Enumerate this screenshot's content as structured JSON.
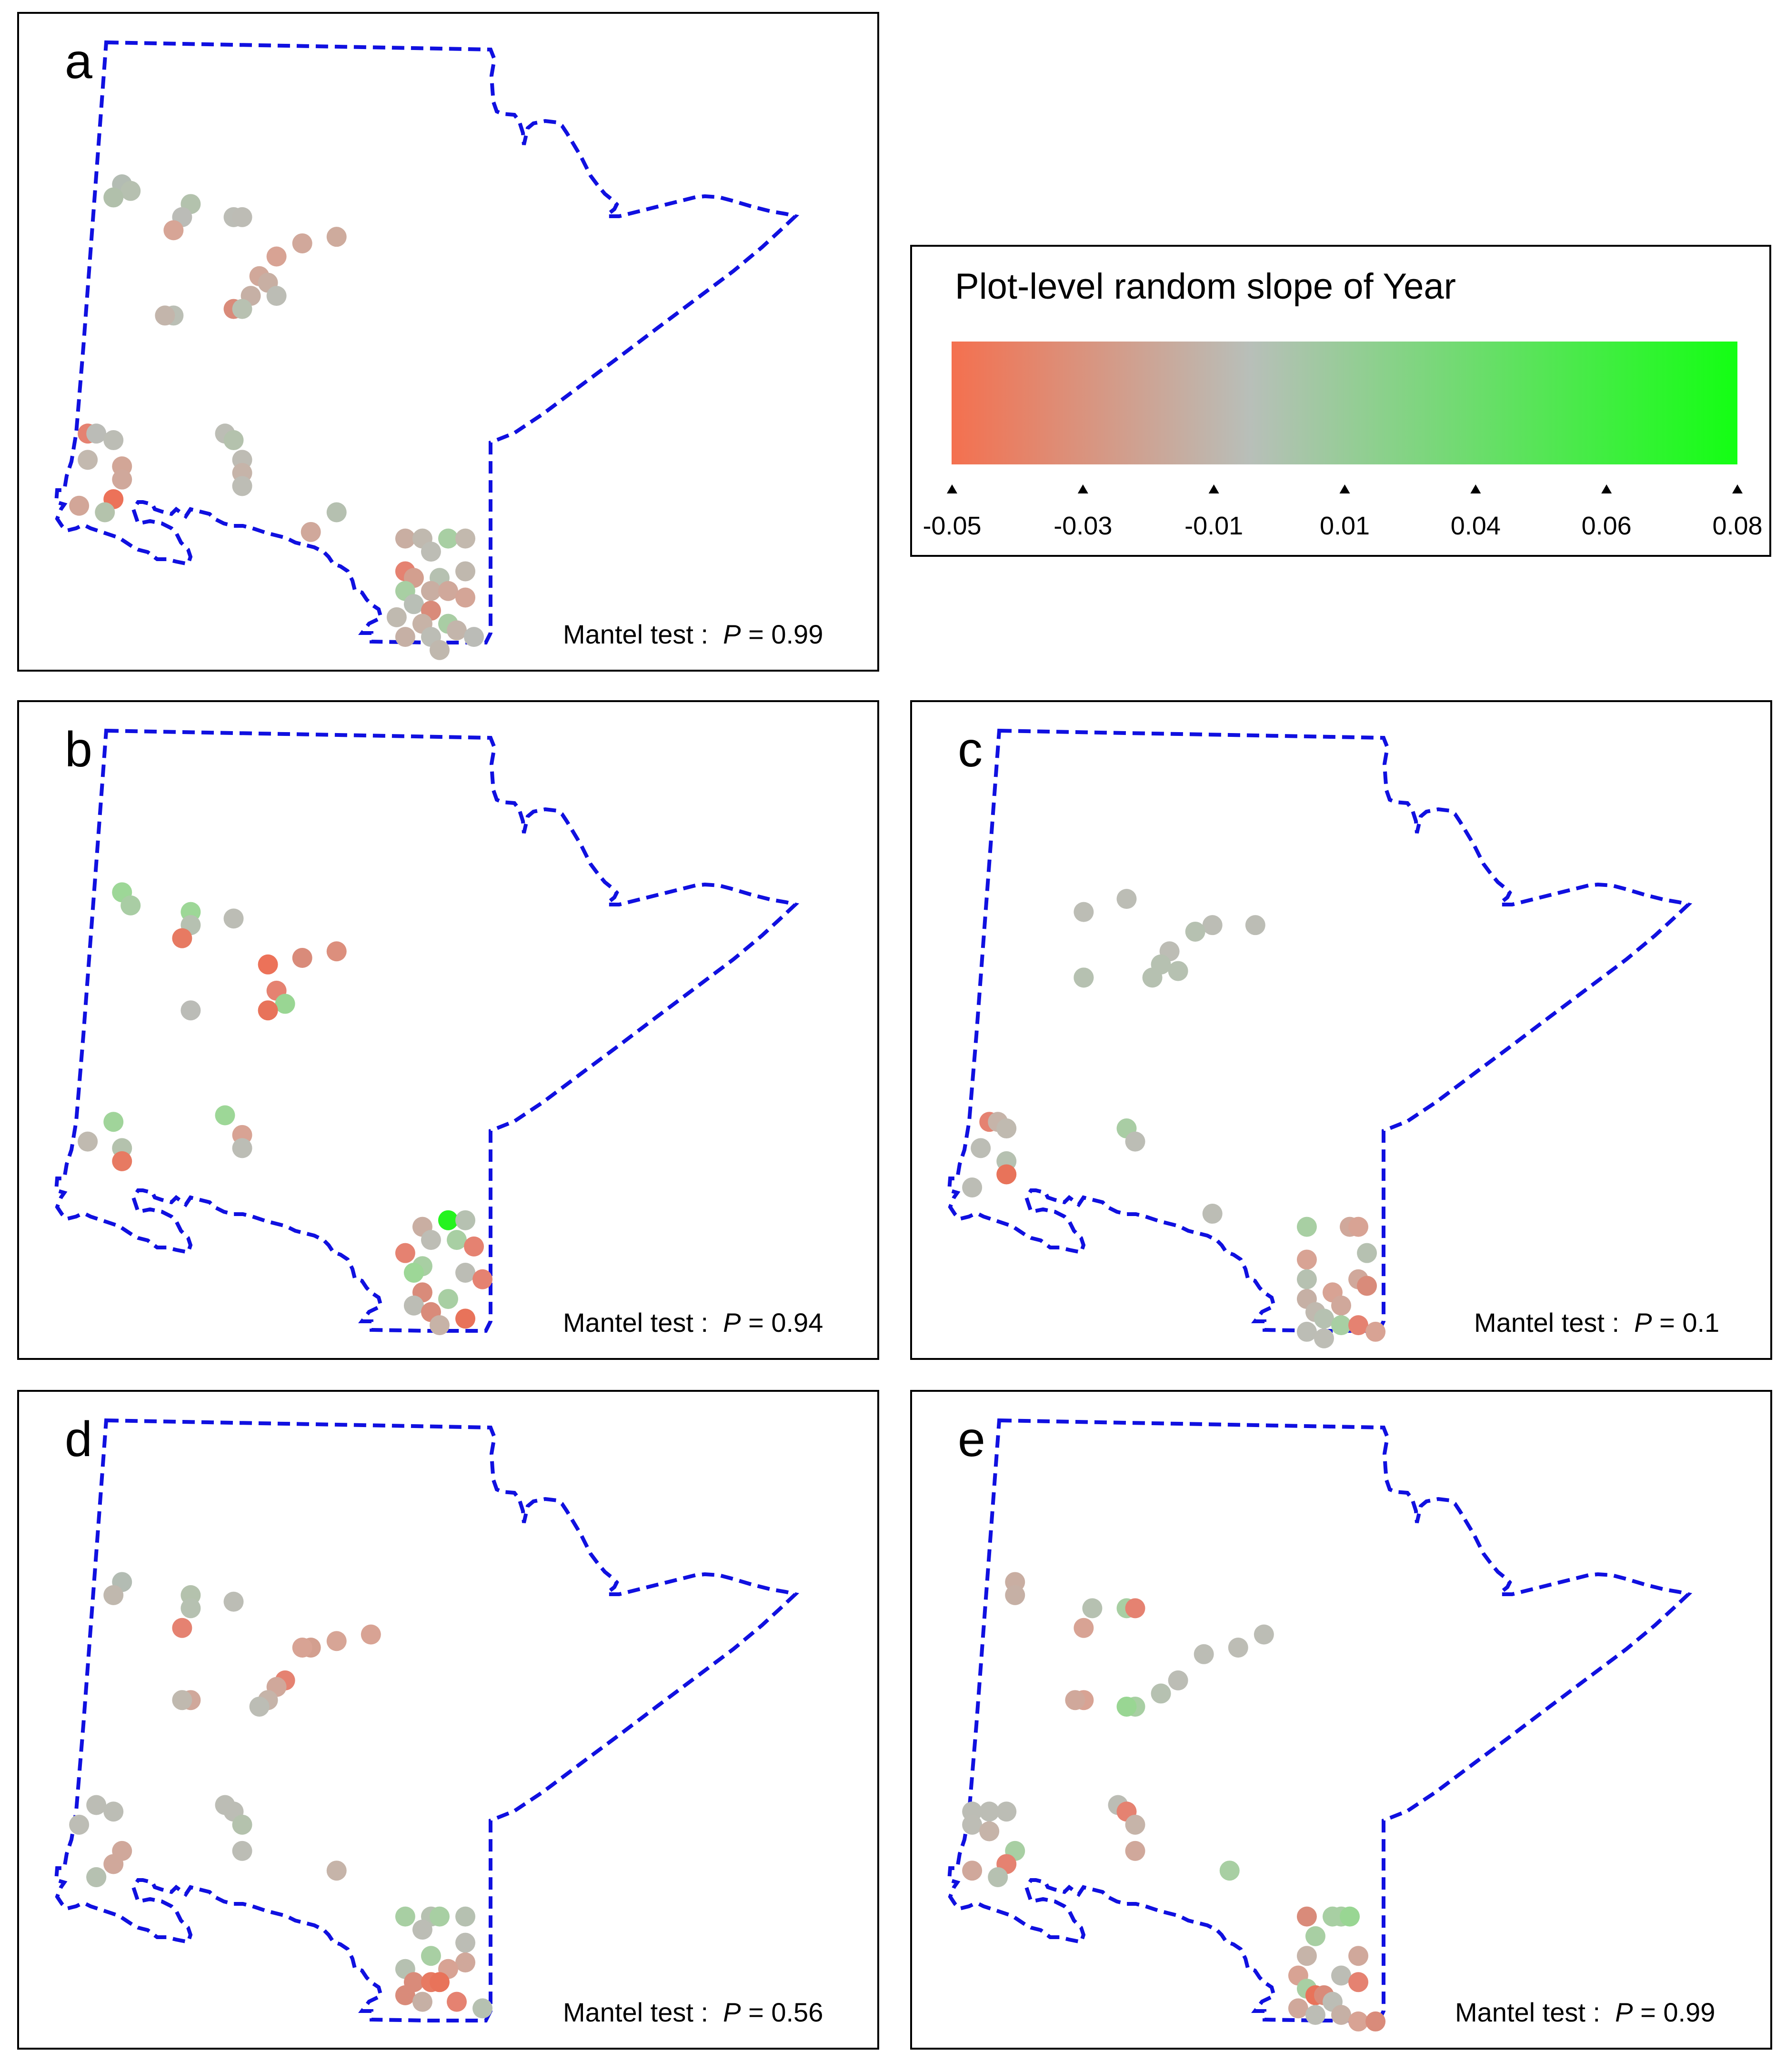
{
  "legend": {
    "title": "Plot-level random slope of Year",
    "colors": [
      "#f4704f",
      "#b8bfb9",
      "#13ff13"
    ],
    "ticks": [
      "-0.05",
      "-0.03",
      "-0.01",
      "0.01",
      "0.04",
      "0.06",
      "0.08"
    ]
  },
  "boundary_color": "#1010e0",
  "mantel_label": "Mantel test :",
  "p_symbol": "P",
  "panels": [
    {
      "letter": "a",
      "p_value": "= 0.99",
      "points": [
        [
          0.12,
          0.26,
          "#b3bcb3"
        ],
        [
          0.13,
          0.27,
          "#b6c0b0"
        ],
        [
          0.11,
          0.28,
          "#b1c0ab"
        ],
        [
          0.2,
          0.29,
          "#b3c2ad"
        ],
        [
          0.19,
          0.31,
          "#bbbcb7"
        ],
        [
          0.18,
          0.33,
          "#d7a596"
        ],
        [
          0.25,
          0.31,
          "#bcbdb6"
        ],
        [
          0.26,
          0.31,
          "#bdbcb5"
        ],
        [
          0.3,
          0.37,
          "#d8a394"
        ],
        [
          0.33,
          0.35,
          "#d1a89b"
        ],
        [
          0.37,
          0.34,
          "#ceab9d"
        ],
        [
          0.28,
          0.4,
          "#d1a89a"
        ],
        [
          0.29,
          0.41,
          "#c8afa3"
        ],
        [
          0.3,
          0.43,
          "#bcbdb5"
        ],
        [
          0.27,
          0.43,
          "#c6b0a5"
        ],
        [
          0.25,
          0.45,
          "#d98b7a"
        ],
        [
          0.26,
          0.45,
          "#b8c1b1"
        ],
        [
          0.18,
          0.46,
          "#bbbfb5"
        ],
        [
          0.17,
          0.46,
          "#c3b5ab"
        ],
        [
          0.08,
          0.64,
          "#e58271"
        ],
        [
          0.09,
          0.64,
          "#bbbcb7"
        ],
        [
          0.11,
          0.65,
          "#bcbdb5"
        ],
        [
          0.08,
          0.68,
          "#c3b9af"
        ],
        [
          0.12,
          0.69,
          "#d2a697"
        ],
        [
          0.12,
          0.71,
          "#d0a89b"
        ],
        [
          0.11,
          0.74,
          "#ec7259"
        ],
        [
          0.07,
          0.75,
          "#d2a698"
        ],
        [
          0.1,
          0.76,
          "#b4c3ac"
        ],
        [
          0.24,
          0.64,
          "#bcbdb5"
        ],
        [
          0.25,
          0.65,
          "#b4c2ad"
        ],
        [
          0.26,
          0.68,
          "#bebcb4"
        ],
        [
          0.26,
          0.7,
          "#c6b4a9"
        ],
        [
          0.26,
          0.72,
          "#bdbdb5"
        ],
        [
          0.37,
          0.76,
          "#b5c0b0"
        ],
        [
          0.34,
          0.79,
          "#d0a89b"
        ],
        [
          0.45,
          0.8,
          "#c9aea2"
        ],
        [
          0.47,
          0.8,
          "#c0b9af"
        ],
        [
          0.5,
          0.8,
          "#a8cfa3"
        ],
        [
          0.52,
          0.8,
          "#c3b9ae"
        ],
        [
          0.48,
          0.82,
          "#bdbdb5"
        ],
        [
          0.45,
          0.85,
          "#e58271"
        ],
        [
          0.46,
          0.86,
          "#d39f8f"
        ],
        [
          0.49,
          0.86,
          "#b6c1b1"
        ],
        [
          0.52,
          0.85,
          "#c0b8ae"
        ],
        [
          0.45,
          0.88,
          "#a8cfa3"
        ],
        [
          0.48,
          0.88,
          "#c9aea2"
        ],
        [
          0.5,
          0.88,
          "#d0a89b"
        ],
        [
          0.52,
          0.89,
          "#d4a597"
        ],
        [
          0.46,
          0.9,
          "#b9bfb6"
        ],
        [
          0.48,
          0.91,
          "#d98b7a"
        ],
        [
          0.44,
          0.92,
          "#c0bab0"
        ],
        [
          0.47,
          0.93,
          "#c7b3a7"
        ],
        [
          0.5,
          0.93,
          "#a9cda4"
        ],
        [
          0.51,
          0.94,
          "#c3b5ab"
        ],
        [
          0.45,
          0.95,
          "#c6b0a5"
        ],
        [
          0.48,
          0.95,
          "#bcbdb5"
        ],
        [
          0.53,
          0.95,
          "#bbbcb7"
        ],
        [
          0.49,
          0.97,
          "#c0b8ae"
        ]
      ]
    },
    {
      "letter": "b",
      "p_value": "= 0.94",
      "points": [
        [
          0.12,
          0.29,
          "#9dd797"
        ],
        [
          0.13,
          0.31,
          "#a9cda4"
        ],
        [
          0.2,
          0.32,
          "#9dd797"
        ],
        [
          0.2,
          0.34,
          "#b6c1b1"
        ],
        [
          0.25,
          0.33,
          "#bcbdb5"
        ],
        [
          0.19,
          0.36,
          "#e77a62"
        ],
        [
          0.29,
          0.4,
          "#ec7259"
        ],
        [
          0.33,
          0.39,
          "#d98b7a"
        ],
        [
          0.37,
          0.38,
          "#dc8f7d"
        ],
        [
          0.3,
          0.44,
          "#e58271"
        ],
        [
          0.31,
          0.46,
          "#99d693"
        ],
        [
          0.29,
          0.47,
          "#e8735a"
        ],
        [
          0.2,
          0.47,
          "#bbbcb7"
        ],
        [
          0.11,
          0.64,
          "#a0d49a"
        ],
        [
          0.08,
          0.67,
          "#c0bab0"
        ],
        [
          0.12,
          0.68,
          "#b4c2ad"
        ],
        [
          0.12,
          0.7,
          "#e77a62"
        ],
        [
          0.24,
          0.63,
          "#9dd797"
        ],
        [
          0.26,
          0.66,
          "#d8a394"
        ],
        [
          0.26,
          0.68,
          "#bcbdb5"
        ],
        [
          0.5,
          0.79,
          "#25f31f"
        ],
        [
          0.52,
          0.79,
          "#b6c1b1"
        ],
        [
          0.47,
          0.8,
          "#c9aea2"
        ],
        [
          0.48,
          0.82,
          "#bdbdb5"
        ],
        [
          0.51,
          0.82,
          "#a8cfa3"
        ],
        [
          0.53,
          0.83,
          "#e58271"
        ],
        [
          0.45,
          0.84,
          "#e58271"
        ],
        [
          0.47,
          0.86,
          "#a8cfa3"
        ],
        [
          0.46,
          0.87,
          "#9dd797"
        ],
        [
          0.52,
          0.87,
          "#bcbdb5"
        ],
        [
          0.54,
          0.88,
          "#e58271"
        ],
        [
          0.47,
          0.9,
          "#d98b7a"
        ],
        [
          0.5,
          0.91,
          "#a8cfa3"
        ],
        [
          0.46,
          0.92,
          "#bcbdb5"
        ],
        [
          0.48,
          0.93,
          "#d98b7a"
        ],
        [
          0.52,
          0.94,
          "#e8735a"
        ],
        [
          0.49,
          0.95,
          "#c7b3a7"
        ]
      ]
    },
    {
      "letter": "c",
      "p_value": "= 0.1",
      "points": [
        [
          0.25,
          0.3,
          "#bcbdb5"
        ],
        [
          0.2,
          0.32,
          "#bcbdb5"
        ],
        [
          0.35,
          0.34,
          "#bcbdb5"
        ],
        [
          0.33,
          0.35,
          "#b6c1b1"
        ],
        [
          0.4,
          0.34,
          "#bcbdb5"
        ],
        [
          0.3,
          0.38,
          "#bdbdb5"
        ],
        [
          0.29,
          0.4,
          "#b6c1b1"
        ],
        [
          0.31,
          0.41,
          "#b6c1b1"
        ],
        [
          0.28,
          0.42,
          "#b6c1b1"
        ],
        [
          0.2,
          0.42,
          "#a8cfa3"
        ],
        [
          0.2,
          0.42,
          "#b6c1b1"
        ],
        [
          0.09,
          0.64,
          "#e58271"
        ],
        [
          0.1,
          0.64,
          "#c6b4a9"
        ],
        [
          0.11,
          0.65,
          "#c0bab0"
        ],
        [
          0.08,
          0.68,
          "#bcbdb5"
        ],
        [
          0.11,
          0.7,
          "#b6c1b1"
        ],
        [
          0.11,
          0.72,
          "#e8735a"
        ],
        [
          0.07,
          0.74,
          "#bcbdb5"
        ],
        [
          0.25,
          0.65,
          "#a9cda4"
        ],
        [
          0.26,
          0.67,
          "#bcbdb5"
        ],
        [
          0.35,
          0.78,
          "#bcbdb5"
        ],
        [
          0.46,
          0.8,
          "#a8cfa3"
        ],
        [
          0.51,
          0.8,
          "#d0a89b"
        ],
        [
          0.52,
          0.8,
          "#d8a394"
        ],
        [
          0.53,
          0.84,
          "#b6c1b1"
        ],
        [
          0.46,
          0.85,
          "#d8a394"
        ],
        [
          0.46,
          0.88,
          "#b6c1b1"
        ],
        [
          0.52,
          0.88,
          "#d0a89b"
        ],
        [
          0.53,
          0.89,
          "#d98b7a"
        ],
        [
          0.49,
          0.9,
          "#d8a394"
        ],
        [
          0.46,
          0.91,
          "#c6b0a5"
        ],
        [
          0.5,
          0.92,
          "#d0a89b"
        ],
        [
          0.47,
          0.93,
          "#c0b9af"
        ],
        [
          0.48,
          0.94,
          "#b6c1b1"
        ],
        [
          0.5,
          0.95,
          "#a8cfa3"
        ],
        [
          0.52,
          0.95,
          "#e58271"
        ],
        [
          0.54,
          0.96,
          "#d8a394"
        ],
        [
          0.46,
          0.96,
          "#bcbdb5"
        ],
        [
          0.48,
          0.97,
          "#bdbdb5"
        ]
      ]
    },
    {
      "letter": "d",
      "p_value": "= 0.56",
      "points": [
        [
          0.12,
          0.29,
          "#b3bcb3"
        ],
        [
          0.11,
          0.31,
          "#c0b8ae"
        ],
        [
          0.2,
          0.31,
          "#b4c2ad"
        ],
        [
          0.2,
          0.33,
          "#b6c1b1"
        ],
        [
          0.25,
          0.32,
          "#bcbdb5"
        ],
        [
          0.19,
          0.36,
          "#e58271"
        ],
        [
          0.34,
          0.39,
          "#d39f8f"
        ],
        [
          0.33,
          0.39,
          "#d8a394"
        ],
        [
          0.37,
          0.38,
          "#d7a596"
        ],
        [
          0.41,
          0.37,
          "#d8a394"
        ],
        [
          0.31,
          0.44,
          "#e58271"
        ],
        [
          0.3,
          0.45,
          "#d0a89b"
        ],
        [
          0.29,
          0.47,
          "#c6b4a9"
        ],
        [
          0.28,
          0.48,
          "#bcbdb5"
        ],
        [
          0.2,
          0.47,
          "#d0a89b"
        ],
        [
          0.19,
          0.47,
          "#c0b9af"
        ],
        [
          0.09,
          0.63,
          "#bcbdb5"
        ],
        [
          0.11,
          0.64,
          "#bcbdb5"
        ],
        [
          0.07,
          0.66,
          "#bdbdb5"
        ],
        [
          0.12,
          0.7,
          "#d0a89b"
        ],
        [
          0.11,
          0.72,
          "#d0a89b"
        ],
        [
          0.09,
          0.74,
          "#b6c1b1"
        ],
        [
          0.09,
          0.74,
          "#b6c1b1"
        ],
        [
          0.24,
          0.63,
          "#bcbdb5"
        ],
        [
          0.25,
          0.64,
          "#bcbdb5"
        ],
        [
          0.26,
          0.66,
          "#b4c2ad"
        ],
        [
          0.26,
          0.7,
          "#bcbdb5"
        ],
        [
          0.37,
          0.73,
          "#c6b4a9"
        ],
        [
          0.45,
          0.8,
          "#a8cfa3"
        ],
        [
          0.48,
          0.8,
          "#b6c1b1"
        ],
        [
          0.49,
          0.8,
          "#a8cfa3"
        ],
        [
          0.52,
          0.8,
          "#b6c1b1"
        ],
        [
          0.47,
          0.82,
          "#bcbdb5"
        ],
        [
          0.52,
          0.84,
          "#bcbdb5"
        ],
        [
          0.48,
          0.86,
          "#a8cfa3"
        ],
        [
          0.52,
          0.87,
          "#d0a89b"
        ],
        [
          0.45,
          0.88,
          "#b6c1b1"
        ],
        [
          0.5,
          0.88,
          "#d8a394"
        ],
        [
          0.46,
          0.9,
          "#d98b7a"
        ],
        [
          0.48,
          0.9,
          "#e77a62"
        ],
        [
          0.49,
          0.9,
          "#e8735a"
        ],
        [
          0.45,
          0.92,
          "#d98b7a"
        ],
        [
          0.47,
          0.93,
          "#c6b0a5"
        ],
        [
          0.51,
          0.93,
          "#e58271"
        ],
        [
          0.54,
          0.94,
          "#b6c1b1"
        ]
      ]
    },
    {
      "letter": "e",
      "p_value": "= 0.99",
      "points": [
        [
          0.12,
          0.29,
          "#c9aea2"
        ],
        [
          0.12,
          0.31,
          "#c6b0a5"
        ],
        [
          0.21,
          0.33,
          "#b6c1b1"
        ],
        [
          0.25,
          0.33,
          "#a8cfa3"
        ],
        [
          0.26,
          0.33,
          "#e58271"
        ],
        [
          0.2,
          0.36,
          "#d8a394"
        ],
        [
          0.34,
          0.4,
          "#bcbdb5"
        ],
        [
          0.38,
          0.39,
          "#bdbdb5"
        ],
        [
          0.41,
          0.37,
          "#bcbdb5"
        ],
        [
          0.31,
          0.44,
          "#bcbdb5"
        ],
        [
          0.29,
          0.46,
          "#b6c1b1"
        ],
        [
          0.26,
          0.48,
          "#a8cfa3"
        ],
        [
          0.25,
          0.48,
          "#99d693"
        ],
        [
          0.2,
          0.47,
          "#d8a394"
        ],
        [
          0.19,
          0.47,
          "#d0a89b"
        ],
        [
          0.07,
          0.64,
          "#bcbdb5"
        ],
        [
          0.09,
          0.64,
          "#bcbdb5"
        ],
        [
          0.11,
          0.64,
          "#bcbdb5"
        ],
        [
          0.07,
          0.66,
          "#bdbdb5"
        ],
        [
          0.09,
          0.67,
          "#c6b4a9"
        ],
        [
          0.12,
          0.7,
          "#a8cfa3"
        ],
        [
          0.11,
          0.72,
          "#e58271"
        ],
        [
          0.07,
          0.73,
          "#d0a89b"
        ],
        [
          0.1,
          0.74,
          "#b6c1b1"
        ],
        [
          0.24,
          0.63,
          "#bcbdb5"
        ],
        [
          0.25,
          0.64,
          "#e58271"
        ],
        [
          0.26,
          0.66,
          "#c6b4a9"
        ],
        [
          0.26,
          0.7,
          "#d0a89b"
        ],
        [
          0.37,
          0.73,
          "#a8cfa3"
        ],
        [
          0.46,
          0.8,
          "#d98b7a"
        ],
        [
          0.49,
          0.8,
          "#a8cfa3"
        ],
        [
          0.5,
          0.8,
          "#a8cfa3"
        ],
        [
          0.51,
          0.8,
          "#99d693"
        ],
        [
          0.47,
          0.83,
          "#a8cfa3"
        ],
        [
          0.46,
          0.86,
          "#c6b4a9"
        ],
        [
          0.52,
          0.86,
          "#d0a89b"
        ],
        [
          0.45,
          0.89,
          "#d8a394"
        ],
        [
          0.5,
          0.89,
          "#bcbdb5"
        ],
        [
          0.52,
          0.9,
          "#e58271"
        ],
        [
          0.46,
          0.91,
          "#a8cfa3"
        ],
        [
          0.47,
          0.92,
          "#e8735a"
        ],
        [
          0.48,
          0.92,
          "#d98b7a"
        ],
        [
          0.49,
          0.93,
          "#bcbdb5"
        ],
        [
          0.45,
          0.94,
          "#d0a89b"
        ],
        [
          0.47,
          0.95,
          "#bcbdb5"
        ],
        [
          0.5,
          0.95,
          "#c6b0a5"
        ],
        [
          0.52,
          0.96,
          "#d8a394"
        ],
        [
          0.54,
          0.96,
          "#d98b7a"
        ]
      ]
    }
  ]
}
